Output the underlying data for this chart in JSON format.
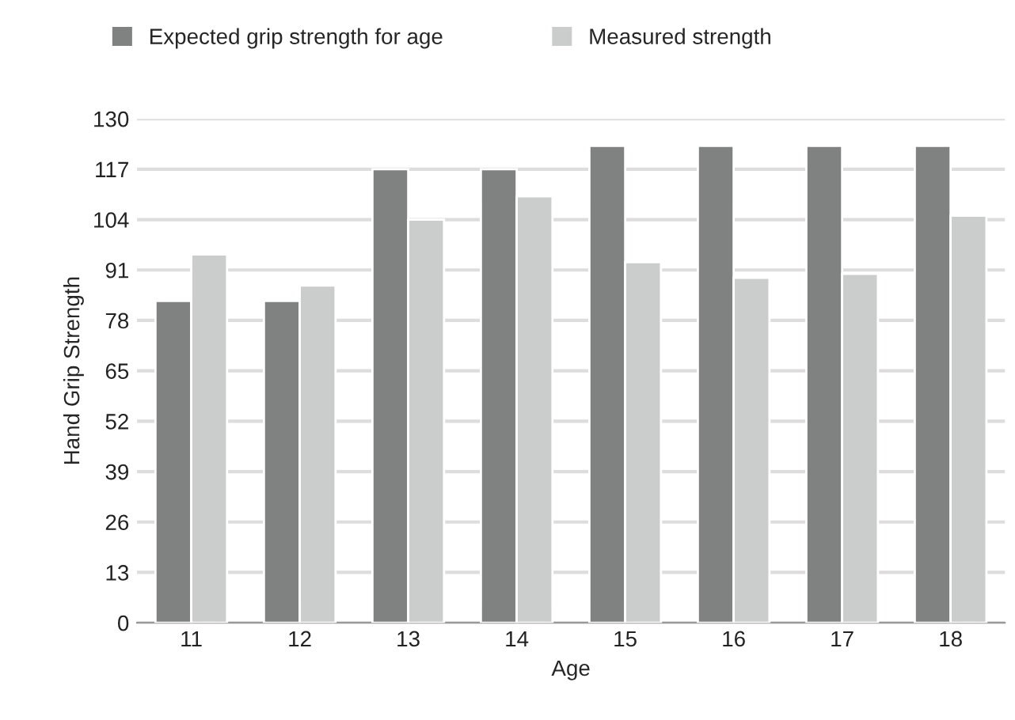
{
  "chart_data": {
    "type": "bar",
    "xlabel": "Age",
    "ylabel": "Hand Grip Strength",
    "categories": [
      "11",
      "12",
      "13",
      "14",
      "15",
      "16",
      "17",
      "18"
    ],
    "series": [
      {
        "name": "Expected grip strength for age",
        "color": "#808282",
        "values": [
          83,
          83,
          117,
          117,
          123,
          123,
          123,
          123
        ]
      },
      {
        "name": "Measured strength",
        "color": "#cbcccc",
        "values": [
          95,
          87,
          104,
          110,
          93,
          89,
          90,
          105
        ]
      }
    ],
    "ylim": [
      0,
      130
    ],
    "yticks": [
      0,
      13,
      26,
      39,
      52,
      65,
      78,
      91,
      104,
      117,
      130
    ],
    "grid": "y",
    "legend": "top left"
  }
}
